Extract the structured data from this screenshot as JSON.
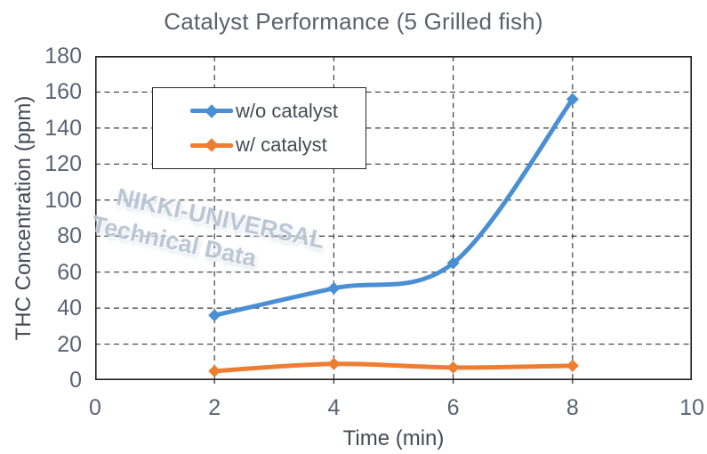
{
  "chart_data": {
    "type": "line",
    "title": "Catalyst Performance (5 Grilled fish)",
    "xlabel": "Time (min)",
    "ylabel": "THC Concentration (ppm)",
    "x": [
      2,
      4,
      6,
      8
    ],
    "series": [
      {
        "name": "w/o catalyst",
        "color": "#4a8fd4",
        "values": [
          36,
          51,
          65,
          156
        ]
      },
      {
        "name": "w/ catalyst",
        "color": "#ed7d31",
        "values": [
          5,
          9,
          7,
          8
        ]
      }
    ],
    "xlim": [
      0,
      10
    ],
    "ylim": [
      0,
      180
    ],
    "x_ticks": [
      0,
      2,
      4,
      6,
      8,
      10
    ],
    "y_ticks": [
      0,
      20,
      40,
      60,
      80,
      100,
      120,
      140,
      160,
      180
    ],
    "grid": true,
    "grid_style": "dashed",
    "smoothed_lines": true,
    "marker": "diamond",
    "legend_position": "top-left",
    "watermark": {
      "line1": "NIKKI-UNIVERSAL",
      "line2": "Technical Data"
    },
    "colors": {
      "series_blue": "#4a8fd4",
      "series_orange": "#ed7d31",
      "grid": "#3d3d3d",
      "frame": "#1f1f1f",
      "tick_text": "#5a6373",
      "axis_title_text": "#454b55",
      "title_text": "#5b616c",
      "watermark_text": "#b6c3d2",
      "background": "#ffffff"
    }
  }
}
